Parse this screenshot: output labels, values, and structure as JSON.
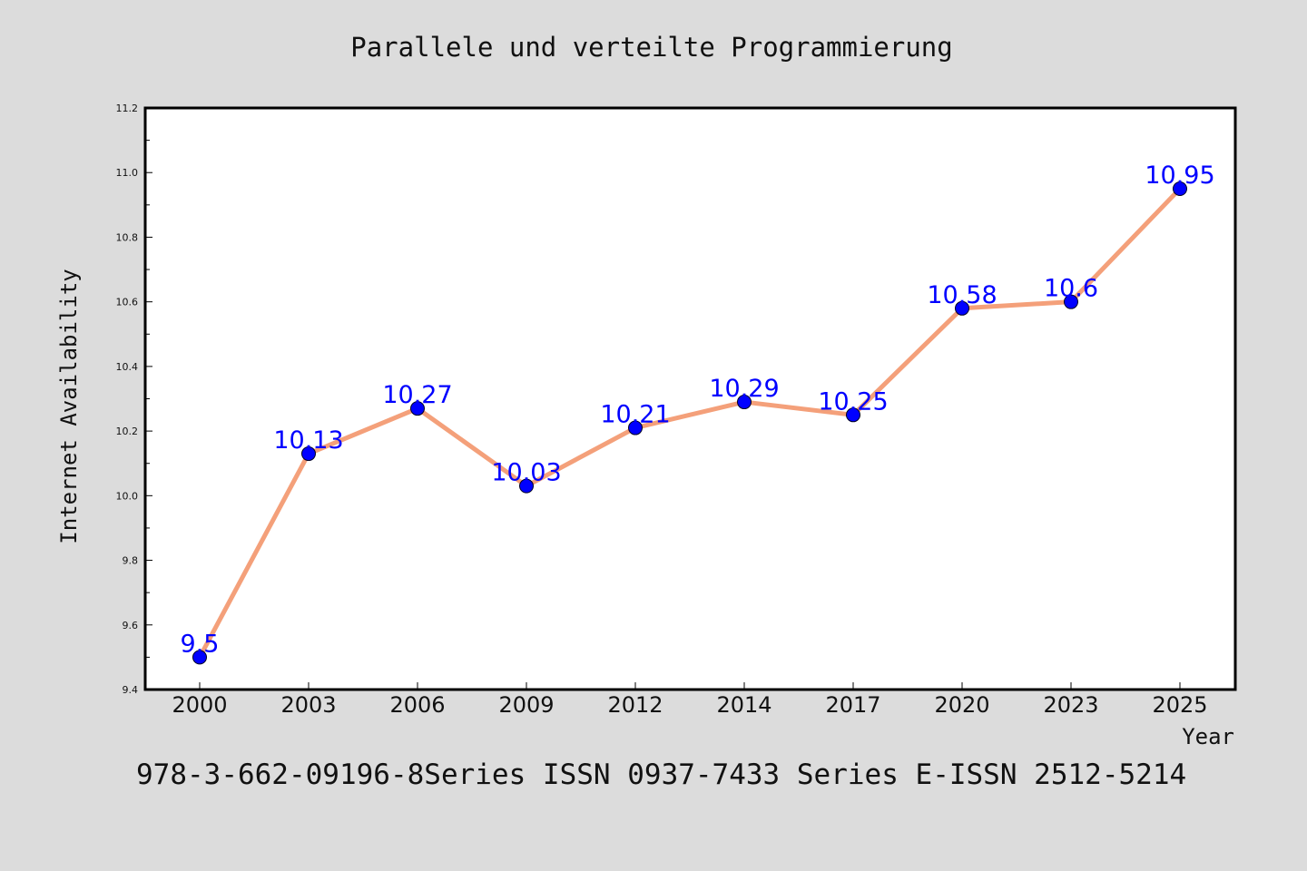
{
  "chart_data": {
    "type": "line",
    "title": "Parallele und verteilte Programmierung",
    "xlabel": "Year",
    "ylabel": "Internet Availability",
    "categories": [
      "2000",
      "2003",
      "2006",
      "2009",
      "2012",
      "2014",
      "2017",
      "2020",
      "2023",
      "2025"
    ],
    "series": [
      {
        "values": [
          9.5,
          10.13,
          10.27,
          10.03,
          10.21,
          10.29,
          10.25,
          10.58,
          10.6,
          10.95
        ],
        "labels": [
          "9.5",
          "10.13",
          "10.27",
          "10.03",
          "10.21",
          "10.29",
          "10.25",
          "10.58",
          "10.6",
          "10.95"
        ]
      }
    ],
    "ylim": [
      9.4,
      11.2
    ],
    "yticks": [
      "9.4",
      "9.6",
      "9.8",
      "10.0",
      "10.2",
      "10.4",
      "10.6",
      "10.8",
      "11.0",
      "11.2"
    ],
    "grid": false,
    "line_color": "#f4a07a",
    "marker_color": "#0000ff",
    "label_color": "#0000ff"
  },
  "footer_text": "978-3-662-09196-8Series ISSN 0937-7433 Series E-ISSN 2512-5214"
}
